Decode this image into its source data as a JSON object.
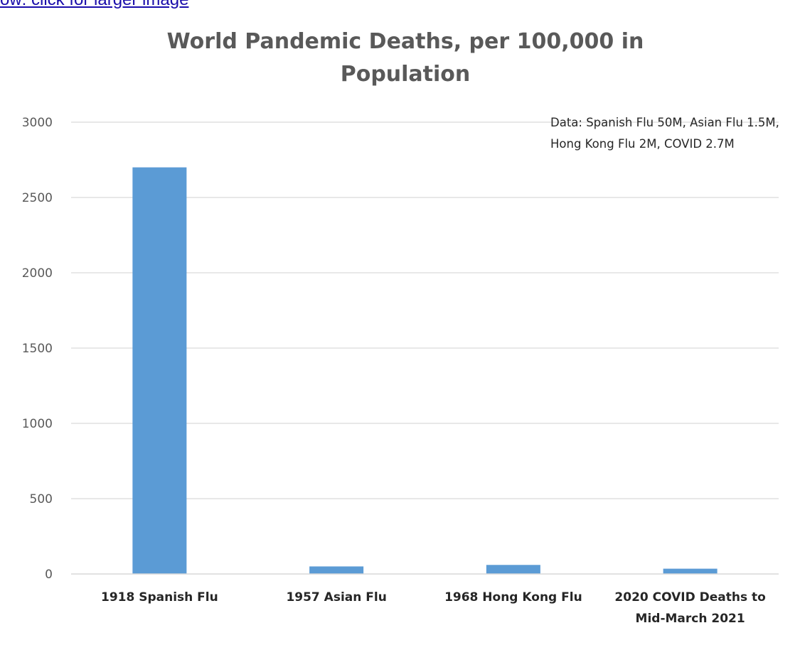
{
  "page": {
    "top_link_text": "ow: click for larger image"
  },
  "chart_data": {
    "type": "bar",
    "title": "World Pandemic Deaths, per 100,000 in Population",
    "annotation": "Data: Spanish Flu 50M, Asian Flu 1.5M, Hong Kong Flu 2M, COVID 2.7M",
    "categories": [
      "1918 Spanish Flu",
      "1957 Asian Flu",
      "1968 Hong Kong Flu",
      "2020 COVID Deaths to Mid-March 2021"
    ],
    "values": [
      2700,
      50,
      60,
      35
    ],
    "ylim": [
      0,
      3000
    ],
    "yticks": [
      "0",
      "500",
      "1000",
      "1500",
      "2000",
      "2500",
      "3000"
    ],
    "grid": true,
    "bar_color": "#5b9bd5"
  }
}
